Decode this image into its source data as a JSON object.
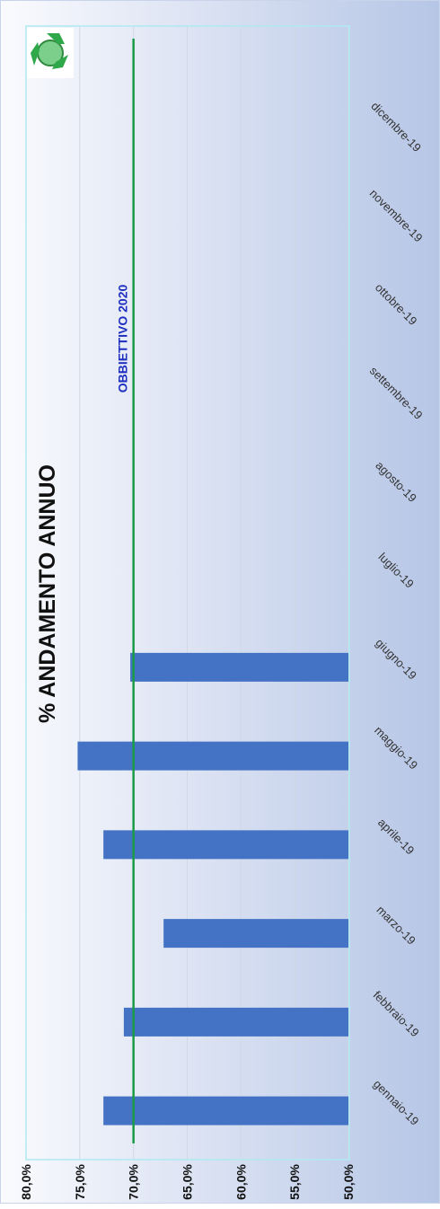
{
  "chart_data": {
    "type": "bar",
    "orientation": "rotated-90-clockwise",
    "title": "% ANDAMENTO ANNUO",
    "categories": [
      "gennaio-19",
      "febbraio-19",
      "marzo-19",
      "aprile-19",
      "maggio-19",
      "giugno-19",
      "luglio-19",
      "agosto-19",
      "settembre-19",
      "ottobre-19",
      "novembre-19",
      "dicembre-19"
    ],
    "series": [
      {
        "values": [
          72.8,
          70.9,
          67.2,
          72.8,
          75.2,
          70.3,
          null,
          null,
          null,
          null,
          null,
          null
        ],
        "color": "#4472c4"
      }
    ],
    "target": {
      "label": "OBBIETTIVO 2020",
      "value": 70.0,
      "color": "#1a9c46",
      "label_color": "#1f2fbf"
    },
    "ylim": [
      50,
      80
    ],
    "yticks": [
      "50,0%",
      "55,0%",
      "60,0%",
      "65,0%",
      "70,0%",
      "75,0%",
      "80,0%"
    ],
    "grid": true,
    "logo_icon": "recycle-globe-icon"
  }
}
